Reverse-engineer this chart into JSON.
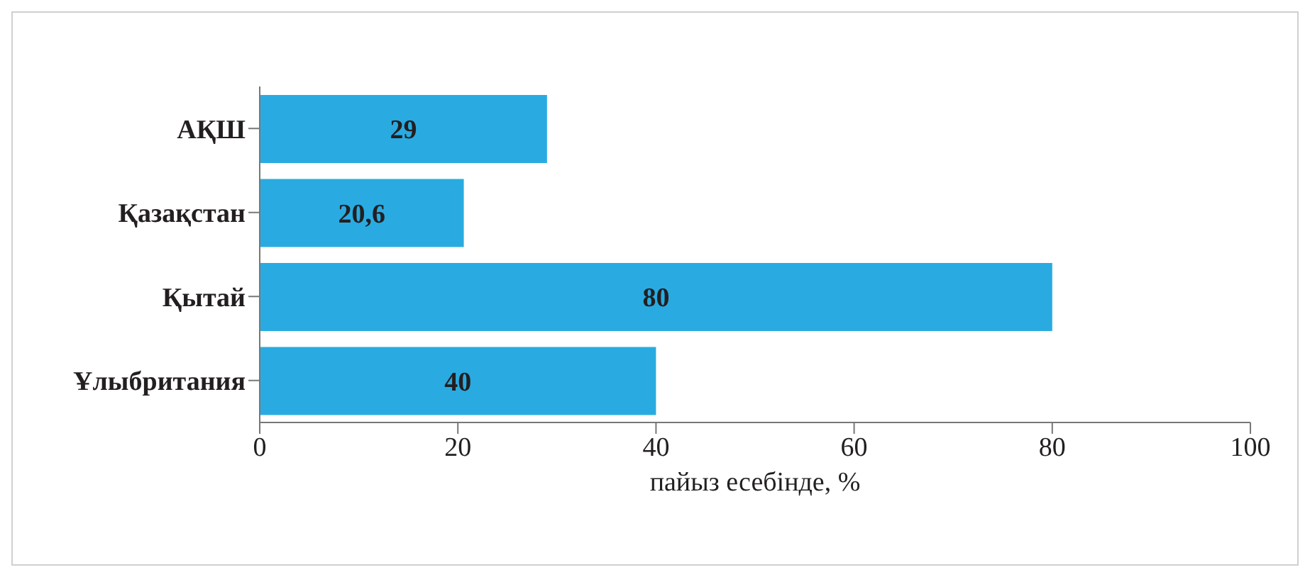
{
  "chart_data": {
    "type": "bar",
    "orientation": "horizontal",
    "categories": [
      "АҚШ",
      "Қазақстан",
      "Қытай",
      "Ұлыбритания"
    ],
    "values": [
      29,
      20.6,
      80,
      40
    ],
    "value_labels": [
      "29",
      "20,6",
      "80",
      "40"
    ],
    "color": "#29abe2",
    "xlabel": "пайыз есебінде, %",
    "xlim": [
      0,
      100
    ],
    "xticks": [
      0,
      20,
      40,
      60,
      80,
      100
    ],
    "grid": false,
    "legend": false
  }
}
